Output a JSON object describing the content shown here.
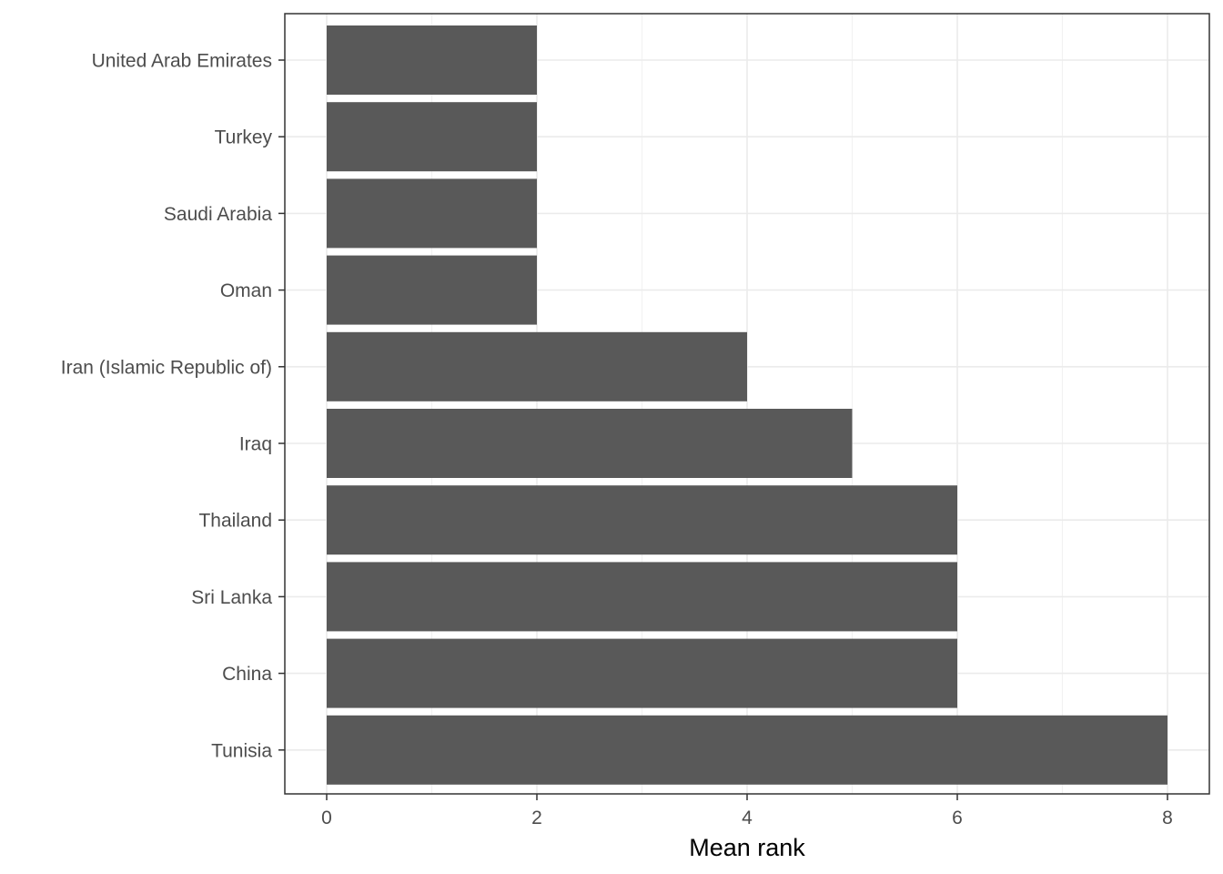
{
  "chart_data": {
    "type": "bar",
    "orientation": "horizontal",
    "categories": [
      "United Arab Emirates",
      "Turkey",
      "Saudi Arabia",
      "Oman",
      "Iran (Islamic Republic of)",
      "Iraq",
      "Thailand",
      "Sri Lanka",
      "China",
      "Tunisia"
    ],
    "values": [
      2,
      2,
      2,
      2,
      4,
      5,
      6,
      6,
      6,
      8
    ],
    "xlabel": "Mean rank",
    "ylabel": "",
    "xlim": [
      0,
      8
    ],
    "xticks": [
      0,
      2,
      4,
      6,
      8
    ],
    "tick_labels": [
      "0",
      "2",
      "4",
      "6",
      "8"
    ],
    "grid": true,
    "colors": {
      "bar": "#595959",
      "grid_major": "#ebebeb",
      "grid_minor": "#f2f2f2",
      "panel_border": "#333333"
    }
  }
}
